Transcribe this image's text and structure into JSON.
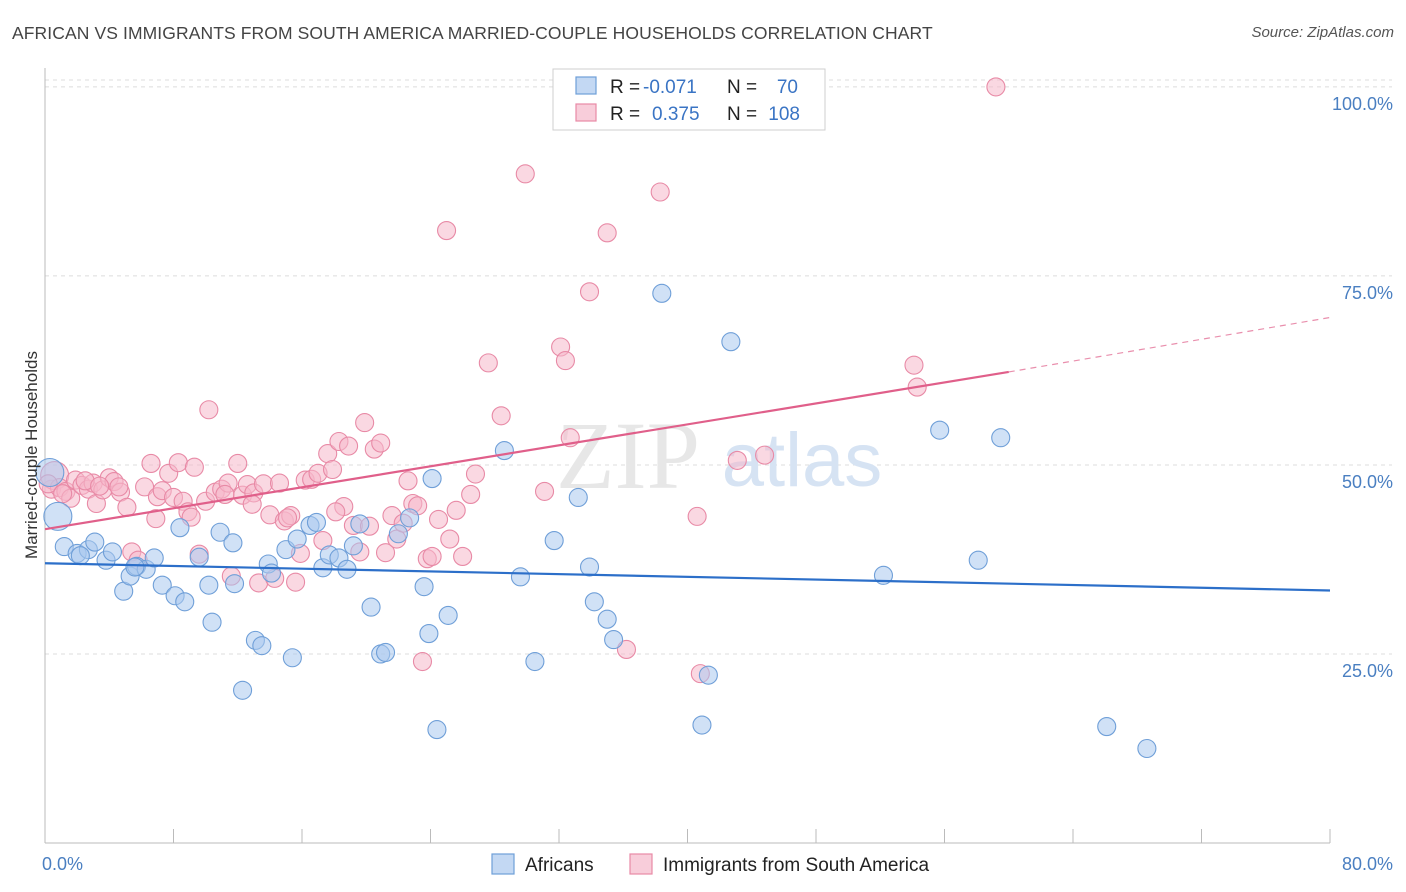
{
  "title": "AFRICAN VS IMMIGRANTS FROM SOUTH AMERICA MARRIED-COUPLE HOUSEHOLDS CORRELATION CHART",
  "source": "Source: ZipAtlas.com",
  "watermark": {
    "zip": "ZIP",
    "atlas": "atlas"
  },
  "colors": {
    "africans_fill": "#a9c8ee",
    "africans_stroke": "#6f9fd8",
    "africans_line": "#2c6fc9",
    "immigrants_fill": "#f5b8ca",
    "immigrants_stroke": "#e88aa6",
    "immigrants_line": "#e05f8a",
    "grid": "#dcdcdc",
    "tick_label": "#4a7fc1"
  },
  "legend": {
    "rows": [
      {
        "r_label": "R =",
        "r_value": "-0.071",
        "n_label": "N =",
        "n_value": "70"
      },
      {
        "r_label": "R =",
        "r_value": "0.375",
        "n_label": "N =",
        "n_value": "108"
      }
    ]
  },
  "chart_data": {
    "type": "scatter",
    "title": "AFRICAN VS IMMIGRANTS FROM SOUTH AMERICA MARRIED-COUPLE HOUSEHOLDS CORRELATION CHART",
    "xlabel": "",
    "ylabel": "Married-couple Households",
    "xlim": [
      0,
      80
    ],
    "ylim": [
      0,
      102.5
    ],
    "x_tick_labels": [
      "0.0%",
      "80.0%"
    ],
    "y_ticks": [
      25,
      50,
      75,
      100
    ],
    "y_tick_labels": [
      "25.0%",
      "50.0%",
      "75.0%",
      "100.0%"
    ],
    "grid": true,
    "legend_position": "top-center",
    "series": [
      {
        "name": "Africans",
        "r": -0.071,
        "n": 70,
        "trend": {
          "x": [
            0,
            80
          ],
          "y": [
            37.0,
            33.4
          ]
        },
        "points": [
          [
            0.3,
            49.0
          ],
          [
            0.8,
            43.2
          ],
          [
            1.2,
            39.2
          ],
          [
            2.0,
            38.3
          ],
          [
            2.7,
            38.8
          ],
          [
            3.1,
            39.8
          ],
          [
            3.8,
            37.4
          ],
          [
            4.2,
            38.5
          ],
          [
            4.9,
            33.3
          ],
          [
            5.3,
            35.3
          ],
          [
            5.7,
            36.6
          ],
          [
            6.3,
            36.2
          ],
          [
            6.8,
            37.7
          ],
          [
            7.3,
            34.1
          ],
          [
            8.1,
            32.7
          ],
          [
            8.7,
            31.9
          ],
          [
            8.4,
            41.7
          ],
          [
            9.6,
            37.8
          ],
          [
            10.2,
            34.1
          ],
          [
            10.4,
            29.2
          ],
          [
            10.9,
            41.1
          ],
          [
            11.7,
            39.7
          ],
          [
            11.8,
            34.3
          ],
          [
            12.3,
            20.2
          ],
          [
            13.1,
            26.8
          ],
          [
            13.5,
            26.1
          ],
          [
            13.9,
            36.9
          ],
          [
            14.1,
            35.7
          ],
          [
            15.0,
            38.8
          ],
          [
            15.4,
            24.5
          ],
          [
            15.7,
            40.2
          ],
          [
            16.5,
            42.0
          ],
          [
            16.9,
            42.4
          ],
          [
            17.3,
            36.4
          ],
          [
            17.7,
            38.1
          ],
          [
            18.3,
            37.7
          ],
          [
            18.8,
            36.2
          ],
          [
            19.2,
            39.3
          ],
          [
            19.6,
            42.2
          ],
          [
            20.3,
            31.2
          ],
          [
            20.9,
            25.0
          ],
          [
            21.2,
            25.2
          ],
          [
            22.0,
            40.9
          ],
          [
            22.7,
            43.0
          ],
          [
            23.6,
            33.9
          ],
          [
            23.9,
            27.7
          ],
          [
            24.1,
            48.2
          ],
          [
            25.1,
            30.1
          ],
          [
            24.4,
            15.0
          ],
          [
            28.6,
            51.9
          ],
          [
            29.6,
            35.2
          ],
          [
            30.5,
            24.0
          ],
          [
            31.7,
            40.0
          ],
          [
            33.2,
            45.7
          ],
          [
            34.2,
            31.9
          ],
          [
            33.9,
            36.5
          ],
          [
            35.0,
            29.6
          ],
          [
            35.4,
            26.9
          ],
          [
            38.4,
            72.7
          ],
          [
            40.9,
            15.6
          ],
          [
            41.3,
            22.2
          ],
          [
            42.7,
            66.3
          ],
          [
            52.2,
            35.4
          ],
          [
            55.7,
            54.6
          ],
          [
            58.1,
            37.4
          ],
          [
            59.5,
            53.6
          ],
          [
            66.1,
            15.4
          ],
          [
            68.6,
            12.5
          ],
          [
            5.6,
            36.5
          ],
          [
            2.2,
            38.0
          ]
        ]
      },
      {
        "name": "Immigrants from South America",
        "r": 0.375,
        "n": 108,
        "trend": {
          "x": [
            0,
            60
          ],
          "y": [
            41.5,
            62.3
          ]
        },
        "trend_extension": {
          "x": [
            60,
            80
          ],
          "y": [
            62.3,
            69.5
          ]
        },
        "points": [
          [
            0.4,
            46.8
          ],
          [
            0.6,
            48.6
          ],
          [
            0.9,
            47.0
          ],
          [
            1.3,
            46.5
          ],
          [
            1.6,
            45.6
          ],
          [
            1.9,
            48.0
          ],
          [
            2.3,
            47.3
          ],
          [
            2.7,
            46.8
          ],
          [
            3.0,
            47.6
          ],
          [
            3.2,
            44.9
          ],
          [
            3.6,
            46.7
          ],
          [
            4.0,
            48.3
          ],
          [
            4.3,
            47.8
          ],
          [
            4.7,
            46.4
          ],
          [
            5.1,
            44.4
          ],
          [
            5.4,
            38.5
          ],
          [
            5.8,
            37.4
          ],
          [
            6.2,
            47.1
          ],
          [
            6.6,
            50.2
          ],
          [
            7.0,
            45.8
          ],
          [
            7.3,
            46.6
          ],
          [
            7.7,
            48.9
          ],
          [
            8.0,
            45.7
          ],
          [
            8.3,
            50.3
          ],
          [
            8.6,
            45.2
          ],
          [
            8.9,
            43.8
          ],
          [
            9.3,
            49.7
          ],
          [
            9.6,
            38.2
          ],
          [
            10.0,
            45.2
          ],
          [
            10.2,
            57.3
          ],
          [
            10.6,
            46.4
          ],
          [
            11.0,
            46.8
          ],
          [
            11.4,
            47.6
          ],
          [
            11.6,
            35.3
          ],
          [
            12.0,
            50.2
          ],
          [
            12.3,
            46.0
          ],
          [
            12.6,
            47.4
          ],
          [
            13.0,
            46.3
          ],
          [
            13.3,
            34.4
          ],
          [
            13.6,
            47.5
          ],
          [
            14.0,
            43.4
          ],
          [
            14.3,
            35.0
          ],
          [
            14.6,
            47.6
          ],
          [
            14.9,
            42.6
          ],
          [
            15.3,
            43.3
          ],
          [
            15.6,
            34.5
          ],
          [
            15.9,
            38.3
          ],
          [
            16.2,
            48.0
          ],
          [
            16.6,
            48.1
          ],
          [
            17.0,
            48.9
          ],
          [
            17.3,
            40.0
          ],
          [
            17.6,
            51.5
          ],
          [
            17.9,
            49.4
          ],
          [
            18.3,
            53.1
          ],
          [
            18.6,
            44.5
          ],
          [
            18.9,
            52.5
          ],
          [
            19.2,
            42.0
          ],
          [
            19.6,
            38.5
          ],
          [
            19.9,
            55.6
          ],
          [
            20.2,
            41.9
          ],
          [
            20.5,
            52.1
          ],
          [
            20.9,
            52.9
          ],
          [
            21.2,
            38.4
          ],
          [
            21.6,
            43.3
          ],
          [
            21.9,
            40.2
          ],
          [
            22.3,
            42.3
          ],
          [
            22.6,
            47.9
          ],
          [
            22.9,
            44.9
          ],
          [
            23.2,
            44.6
          ],
          [
            23.5,
            24.0
          ],
          [
            23.8,
            37.6
          ],
          [
            24.1,
            37.9
          ],
          [
            24.5,
            42.8
          ],
          [
            25.0,
            81.0
          ],
          [
            25.2,
            40.2
          ],
          [
            25.6,
            44.0
          ],
          [
            26.0,
            37.9
          ],
          [
            26.5,
            46.1
          ],
          [
            26.8,
            48.8
          ],
          [
            27.6,
            63.5
          ],
          [
            28.4,
            56.5
          ],
          [
            29.9,
            88.5
          ],
          [
            31.1,
            46.5
          ],
          [
            32.1,
            65.6
          ],
          [
            32.4,
            63.8
          ],
          [
            32.7,
            53.6
          ],
          [
            33.9,
            72.9
          ],
          [
            35.0,
            80.7
          ],
          [
            36.2,
            25.6
          ],
          [
            38.3,
            86.1
          ],
          [
            40.6,
            43.2
          ],
          [
            40.8,
            22.4
          ],
          [
            43.1,
            50.6
          ],
          [
            44.8,
            51.3
          ],
          [
            54.1,
            63.2
          ],
          [
            54.3,
            60.3
          ],
          [
            59.2,
            100.0
          ],
          [
            0.2,
            47.5
          ],
          [
            1.1,
            46.2
          ],
          [
            2.5,
            47.9
          ],
          [
            4.6,
            47.1
          ],
          [
            6.9,
            42.9
          ],
          [
            9.1,
            43.1
          ],
          [
            11.2,
            46.1
          ],
          [
            12.9,
            44.8
          ],
          [
            15.1,
            43.0
          ],
          [
            18.1,
            43.8
          ],
          [
            3.4,
            47.2
          ]
        ]
      }
    ]
  },
  "bottom_legend": [
    {
      "label": "Africans"
    },
    {
      "label": "Immigrants from South America"
    }
  ]
}
